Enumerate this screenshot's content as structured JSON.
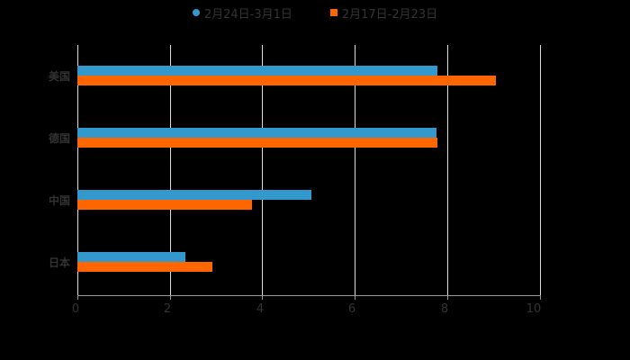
{
  "legend": {
    "series1": "2月24日-3月1日",
    "series2": "2月17日-2月23日"
  },
  "colors": {
    "series1": "#3399CC",
    "series2": "#FF6600",
    "background": "#000000"
  },
  "xaxis": {
    "ticks": [
      "0",
      "2",
      "4",
      "6",
      "8",
      "10"
    ]
  },
  "categories": [
    "美国",
    "德国",
    "中国",
    "日本"
  ],
  "chart_data": {
    "type": "bar",
    "orientation": "horizontal",
    "title": "",
    "categories": [
      "美国",
      "德国",
      "中国",
      "日本"
    ],
    "series": [
      {
        "name": "2月24日-3月1日",
        "color": "#3399CC",
        "values": [
          7.78,
          7.76,
          5.06,
          2.33
        ]
      },
      {
        "name": "2月17日-2月23日",
        "color": "#FF6600",
        "values": [
          9.05,
          7.78,
          3.77,
          2.92
        ]
      }
    ],
    "xlabel": "",
    "ylabel": "",
    "xlim": [
      0,
      10
    ],
    "xticks": [
      0,
      2,
      4,
      6,
      8,
      10
    ],
    "grid": "vertical",
    "legend_position": "top"
  }
}
